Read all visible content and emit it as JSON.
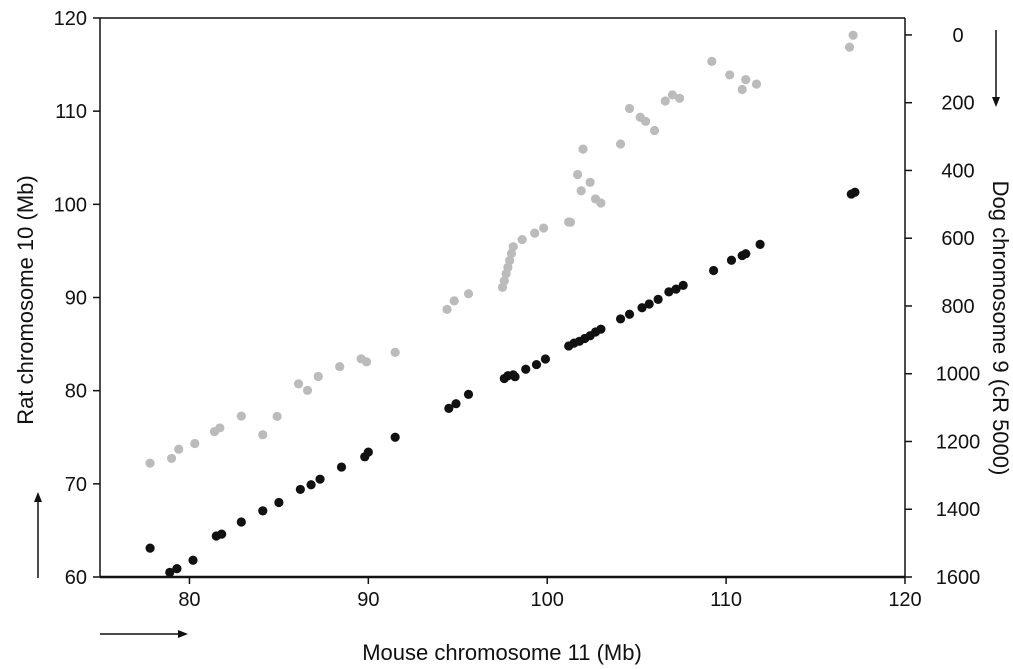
{
  "chart_data": {
    "type": "scatter",
    "xlabel": "Mouse chromosome 11 (Mb)",
    "ylabel": "Rat chromosome 10 (Mb)",
    "y2label": "Dog chromosome 9 (cR 5000)",
    "xlim": [
      75,
      120
    ],
    "ylim": [
      60,
      120
    ],
    "y2lim": [
      1600,
      -50
    ],
    "y2_inverted": true,
    "x_ticks": [
      80,
      90,
      100,
      110,
      120
    ],
    "y_ticks": [
      60,
      70,
      80,
      90,
      100,
      110,
      120
    ],
    "y2_ticks": [
      0,
      200,
      400,
      600,
      800,
      1000,
      1200,
      1400,
      1600
    ],
    "grid": false,
    "legend": "none",
    "colors": {
      "rat": "#111111",
      "dog": "#bbbbbb"
    },
    "series": [
      {
        "axis": "left",
        "color": "#111111",
        "points": [
          [
            77.8,
            63.1
          ],
          [
            78.9,
            60.5
          ],
          [
            79.3,
            60.9
          ],
          [
            80.2,
            61.8
          ],
          [
            81.5,
            64.4
          ],
          [
            81.8,
            64.6
          ],
          [
            82.9,
            65.9
          ],
          [
            84.1,
            67.1
          ],
          [
            85.0,
            68.0
          ],
          [
            86.2,
            69.4
          ],
          [
            86.8,
            69.9
          ],
          [
            87.3,
            70.5
          ],
          [
            88.5,
            71.8
          ],
          [
            89.8,
            72.9
          ],
          [
            90.0,
            73.4
          ],
          [
            91.5,
            75.0
          ],
          [
            94.5,
            78.1
          ],
          [
            94.9,
            78.6
          ],
          [
            95.6,
            79.6
          ],
          [
            97.6,
            81.3
          ],
          [
            97.8,
            81.6
          ],
          [
            98.1,
            81.7
          ],
          [
            98.2,
            81.5
          ],
          [
            98.8,
            82.3
          ],
          [
            99.4,
            82.8
          ],
          [
            99.9,
            83.4
          ],
          [
            101.2,
            84.8
          ],
          [
            101.5,
            85.1
          ],
          [
            101.8,
            85.3
          ],
          [
            102.1,
            85.6
          ],
          [
            102.4,
            85.9
          ],
          [
            102.7,
            86.3
          ],
          [
            103.0,
            86.6
          ],
          [
            104.1,
            87.7
          ],
          [
            104.6,
            88.2
          ],
          [
            105.3,
            88.9
          ],
          [
            105.7,
            89.3
          ],
          [
            106.2,
            89.8
          ],
          [
            106.8,
            90.6
          ],
          [
            107.2,
            90.9
          ],
          [
            107.6,
            91.3
          ],
          [
            109.3,
            92.9
          ],
          [
            110.3,
            94.0
          ],
          [
            110.9,
            94.5
          ],
          [
            111.1,
            94.7
          ],
          [
            111.9,
            95.7
          ],
          [
            117.0,
            101.1
          ],
          [
            117.2,
            101.3
          ]
        ]
      },
      {
        "axis": "right",
        "color": "#bbbbbb",
        "points": [
          [
            77.8,
            1264
          ],
          [
            79.0,
            1250
          ],
          [
            79.4,
            1223
          ],
          [
            80.3,
            1206
          ],
          [
            81.4,
            1171
          ],
          [
            81.7,
            1160
          ],
          [
            82.9,
            1125
          ],
          [
            84.1,
            1180
          ],
          [
            84.9,
            1126
          ],
          [
            86.1,
            1030
          ],
          [
            86.6,
            1049
          ],
          [
            87.2,
            1008
          ],
          [
            88.4,
            979
          ],
          [
            89.6,
            956
          ],
          [
            89.9,
            965
          ],
          [
            91.5,
            937
          ],
          [
            94.4,
            810
          ],
          [
            94.8,
            785
          ],
          [
            95.6,
            764
          ],
          [
            97.5,
            745
          ],
          [
            97.6,
            726
          ],
          [
            97.7,
            705
          ],
          [
            97.8,
            686
          ],
          [
            97.9,
            666
          ],
          [
            98.0,
            645
          ],
          [
            98.1,
            625
          ],
          [
            98.6,
            604
          ],
          [
            99.3,
            585
          ],
          [
            99.8,
            570
          ],
          [
            101.2,
            552
          ],
          [
            101.3,
            553
          ],
          [
            101.7,
            412
          ],
          [
            101.9,
            460
          ],
          [
            102.0,
            337
          ],
          [
            102.4,
            435
          ],
          [
            102.7,
            484
          ],
          [
            103.0,
            496
          ],
          [
            104.1,
            322
          ],
          [
            104.6,
            217
          ],
          [
            105.2,
            243
          ],
          [
            105.5,
            255
          ],
          [
            106.0,
            282
          ],
          [
            106.6,
            195
          ],
          [
            107.0,
            177
          ],
          [
            107.4,
            187
          ],
          [
            109.2,
            78
          ],
          [
            110.2,
            118
          ],
          [
            110.9,
            161
          ],
          [
            111.1,
            132
          ],
          [
            111.7,
            145
          ],
          [
            116.9,
            36
          ],
          [
            117.1,
            1
          ]
        ]
      }
    ]
  }
}
